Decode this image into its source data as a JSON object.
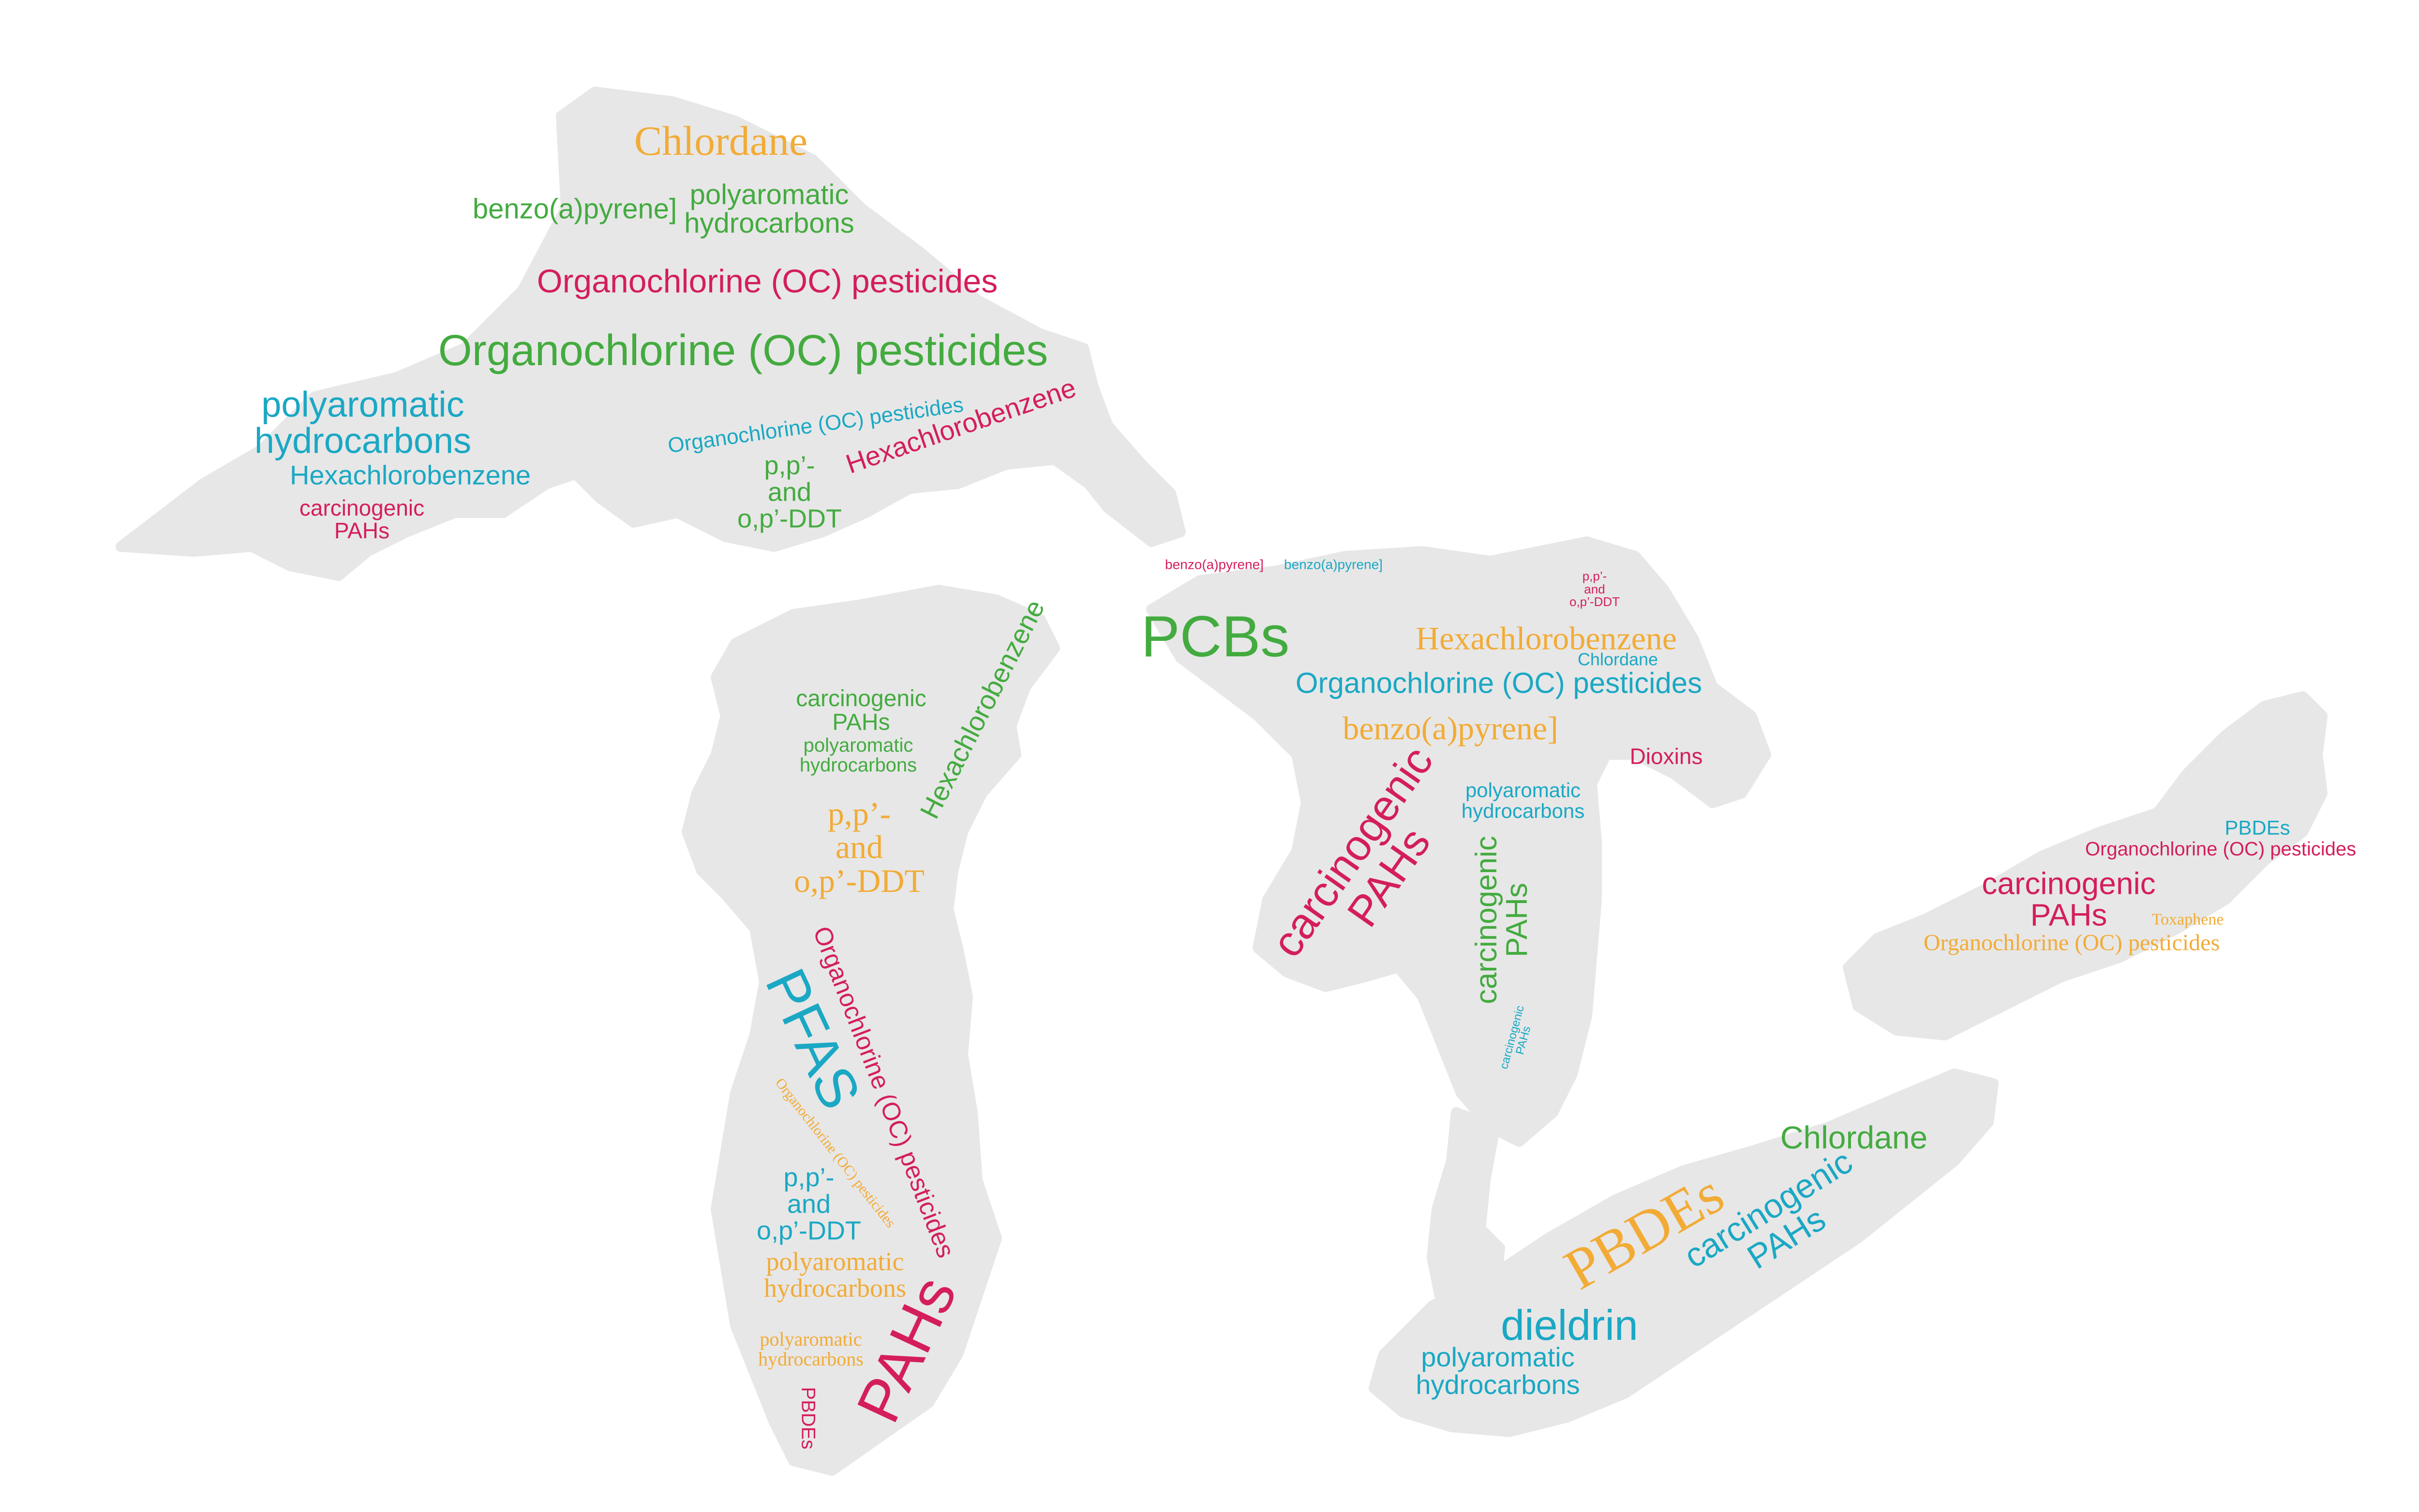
{
  "colors": {
    "pink": "#d41e5b",
    "green": "#43ab3f",
    "blue": "#1aa8c4",
    "orange": "#f2ab36",
    "lake_fill": "#e7e7e7"
  },
  "lakes": {
    "superior": {
      "words": [
        "Chlordane",
        "benzo(a)pyrene]",
        "polyaromatic\nhydrocarbons",
        "Organochlorine (OC) pesticides",
        "Organochlorine (OC) pesticides",
        "polyaromatic\nhydrocarbons",
        "Organochlorine (OC) pesticides",
        "Hexachlorobenzene",
        "Hexachlorobenzene",
        "p,p’-\nand\no,p’-DDT",
        "carcinogenic\nPAHs"
      ]
    },
    "michigan": {
      "words": [
        "carcinogenic\nPAHs",
        "polyaromatic\nhydrocarbons",
        "Hexachlorobenzene",
        "p,p’-\nand\no,p’-DDT",
        "PFAS",
        "Organochlorine (OC) pesticides",
        "Organochlorine (OC) pesticides",
        "p,p’-\nand\no,p’-DDT",
        "polyaromatic\nhydrocarbons",
        "polyaromatic\nhydrocarbons",
        "PAHs",
        "PBDEs"
      ]
    },
    "huron": {
      "words": [
        "benzo(a)pyrene]",
        "benzo(a)pyrene]",
        "PCBs",
        "p,p’-\nand\no,p’-DDT",
        "Hexachlorobenzene",
        "Chlordane",
        "Organochlorine (OC) pesticides",
        "benzo(a)pyrene]",
        "Dioxins",
        "carcinogenic\nPAHs",
        "polyaromatic\nhydrocarbons",
        "carcinogenic\nPAHs",
        "carcinogenic\nPAHs"
      ]
    },
    "ontario": {
      "words": [
        "PBDEs",
        "Organochlorine (OC) pesticides",
        "carcinogenic\nPAHs",
        "Toxaphene",
        "Organochlorine (OC) pesticides"
      ]
    },
    "erie": {
      "words": [
        "Chlordane",
        "PBDEs",
        "carcinogenic\nPAHs",
        "dieldrin",
        "polyaromatic\nhydrocarbons"
      ]
    }
  }
}
